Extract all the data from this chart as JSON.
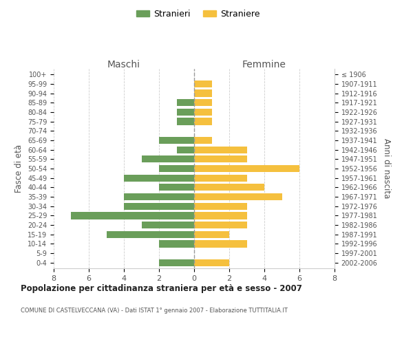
{
  "age_groups": [
    "100+",
    "95-99",
    "90-94",
    "85-89",
    "80-84",
    "75-79",
    "70-74",
    "65-69",
    "60-64",
    "55-59",
    "50-54",
    "45-49",
    "40-44",
    "35-39",
    "30-34",
    "25-29",
    "20-24",
    "15-19",
    "10-14",
    "5-9",
    "0-4"
  ],
  "birth_years": [
    "≤ 1906",
    "1907-1911",
    "1912-1916",
    "1917-1921",
    "1922-1926",
    "1927-1931",
    "1932-1936",
    "1937-1941",
    "1942-1946",
    "1947-1951",
    "1952-1956",
    "1957-1961",
    "1962-1966",
    "1967-1971",
    "1972-1976",
    "1977-1981",
    "1982-1986",
    "1987-1991",
    "1992-1996",
    "1997-2001",
    "2002-2006"
  ],
  "maschi": [
    0,
    0,
    0,
    1,
    1,
    1,
    0,
    2,
    1,
    3,
    2,
    4,
    2,
    4,
    4,
    7,
    3,
    5,
    2,
    0,
    2
  ],
  "femmine": [
    0,
    1,
    1,
    1,
    1,
    1,
    0,
    1,
    3,
    3,
    6,
    3,
    4,
    5,
    3,
    3,
    3,
    2,
    3,
    0,
    2
  ],
  "color_maschi": "#6a9e5a",
  "color_femmine": "#f5c03e",
  "title_main": "Popolazione per cittadinanza straniera per età e sesso - 2007",
  "title_sub": "COMUNE DI CASTELVECCANA (VA) - Dati ISTAT 1° gennaio 2007 - Elaborazione TUTTITALIA.IT",
  "ylabel_left": "Fasce di età",
  "ylabel_right": "Anni di nascita",
  "xlabel_left": "Maschi",
  "xlabel_right": "Femmine",
  "legend_stranieri": "Stranieri",
  "legend_straniere": "Straniere",
  "xlim": 8,
  "background_color": "#ffffff",
  "grid_color": "#cccccc"
}
